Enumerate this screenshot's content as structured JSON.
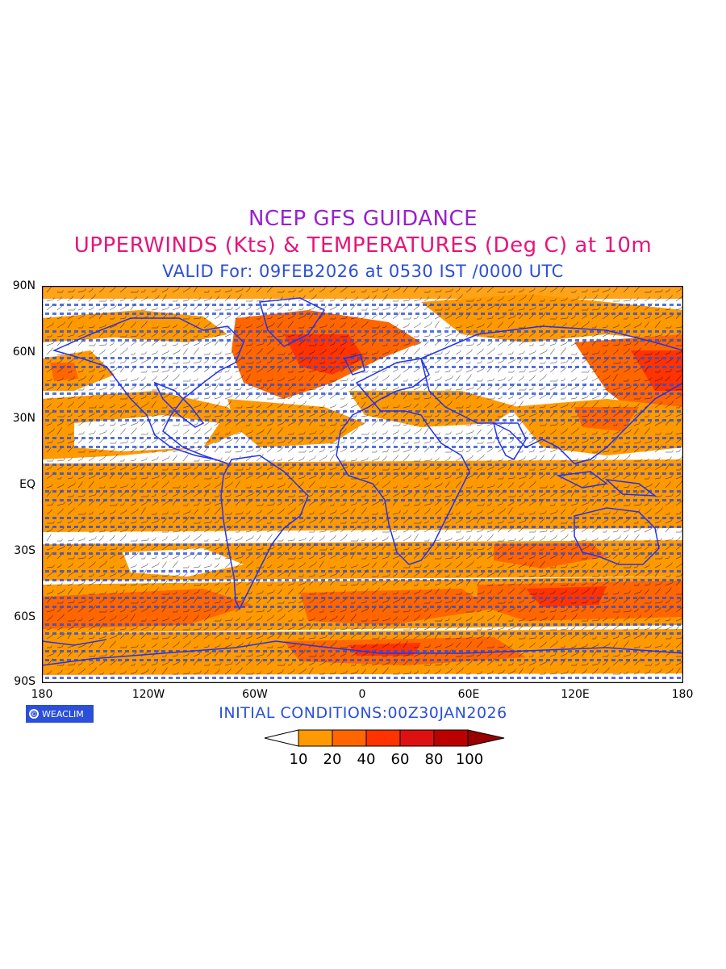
{
  "header": {
    "line1": "NCEP GFS GUIDANCE",
    "line2": "UPPERWINDS (Kts) & TEMPERATURES (Deg C) at 10m",
    "line3": "VALID For: 09FEB2026 at 0530 IST /0000 UTC"
  },
  "colors": {
    "line1": "#9a1fd0",
    "line2": "#e6157a",
    "line3": "#2b4fd8",
    "coast": "#2233ee",
    "wind_barb": "#000000",
    "temp_text": "#2b4fd8"
  },
  "axes": {
    "lat_labels": [
      "90N",
      "60N",
      "30N",
      "EQ",
      "30S",
      "60S",
      "90S"
    ],
    "lon_labels": [
      "180",
      "120W",
      "60W",
      "0",
      "60E",
      "120E",
      "180"
    ]
  },
  "footer": {
    "logo_text": "WEACLIM",
    "initial_conditions": "INITIAL CONDITIONS:00Z30JAN2026"
  },
  "colorbar": {
    "labels": [
      "10",
      "20",
      "40",
      "60",
      "80",
      "100"
    ],
    "colors": [
      "#ffffff",
      "#ff9900",
      "#ff6600",
      "#ff3300",
      "#dd1111",
      "#bb0000",
      "#990000"
    ]
  }
}
